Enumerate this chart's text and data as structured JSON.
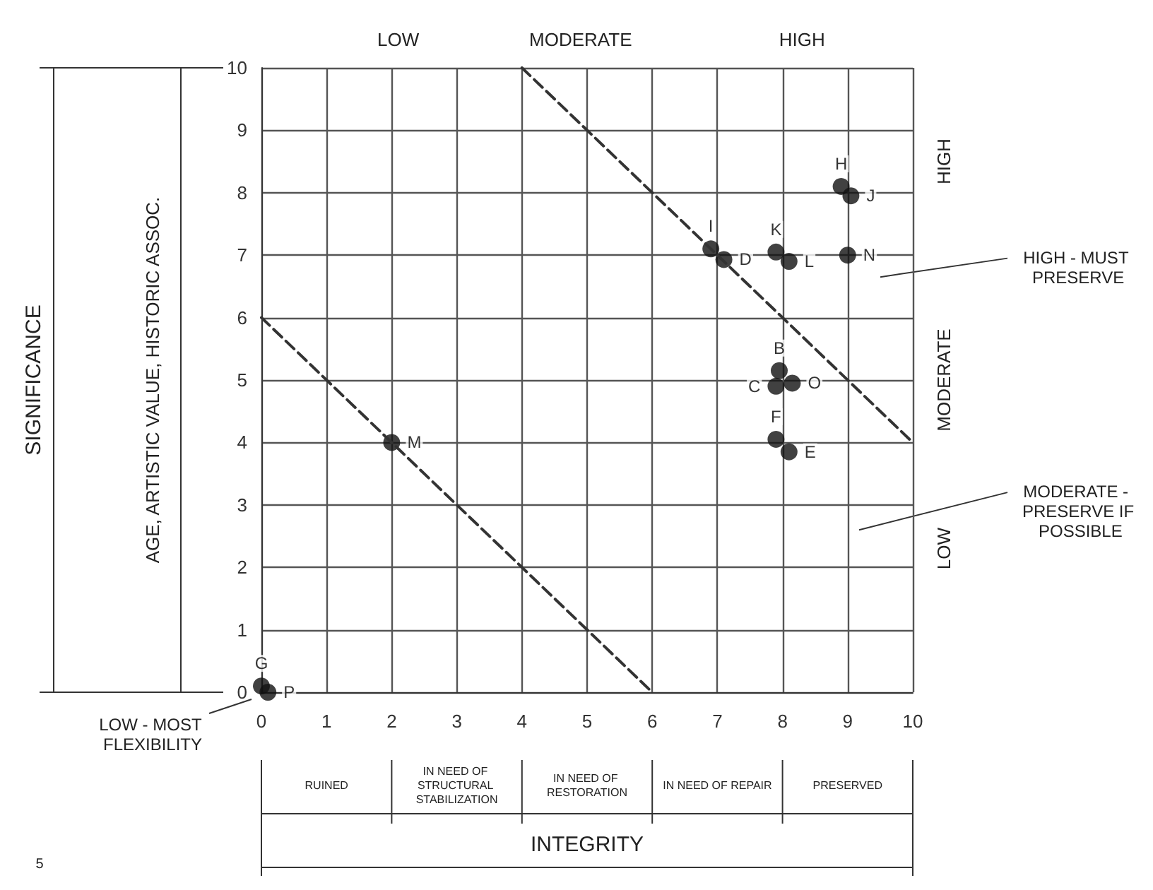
{
  "chart_data": {
    "type": "scatter",
    "xlim": [
      0,
      10
    ],
    "ylim": [
      0,
      10
    ],
    "xticks": [
      0,
      1,
      2,
      3,
      4,
      5,
      6,
      7,
      8,
      9,
      10
    ],
    "yticks": [
      0,
      1,
      2,
      3,
      4,
      5,
      6,
      7,
      8,
      9,
      10
    ],
    "grid": true,
    "marker": "circle",
    "series": [
      {
        "color": "#111111",
        "x": [
          0,
          0.1,
          2,
          6.9,
          7.1,
          7.9,
          8.1,
          9,
          8.9,
          9.05,
          7.95,
          7.9,
          8.15,
          7.9,
          8.1
        ],
        "values": [
          0.1,
          0,
          4,
          7.1,
          6.93,
          7.05,
          6.9,
          7,
          8.1,
          7.95,
          5.15,
          4.9,
          4.95,
          4.05,
          3.85
        ],
        "value_labels": [
          "G",
          "P",
          "M",
          "I",
          "D",
          "K",
          "L",
          "N",
          "H",
          "J",
          "B",
          "C",
          "O",
          "F",
          "E"
        ]
      },
      {
        "type": "line",
        "color": "#333333",
        "line_style": "dashed",
        "marker": "none",
        "x": [
          0,
          6
        ],
        "values": [
          6,
          0
        ]
      },
      {
        "type": "line",
        "color": "#333333",
        "line_style": "dashed",
        "marker": "none",
        "x": [
          4,
          10
        ],
        "values": [
          10,
          4
        ]
      }
    ],
    "annotations": [
      "LOW",
      "MODERATE",
      "HIGH",
      "HIGH",
      "MODERATE",
      "LOW",
      "HIGH - MUST PRESERVE",
      "MODERATE - PRESERVE IF POSSIBLE",
      "LOW - MOST FLEXIBILITY",
      "AGE, ARTISTIC VALUE, HISTORIC ASSOC.",
      "RUINED",
      "IN NEED OF STRUCTURAL STABILIZATION",
      "IN NEED OF RESTORATION",
      "IN NEED OF REPAIR",
      "PRESERVED",
      "5",
      "SIGNIFICANCE",
      "INTEGRITY"
    ]
  }
}
